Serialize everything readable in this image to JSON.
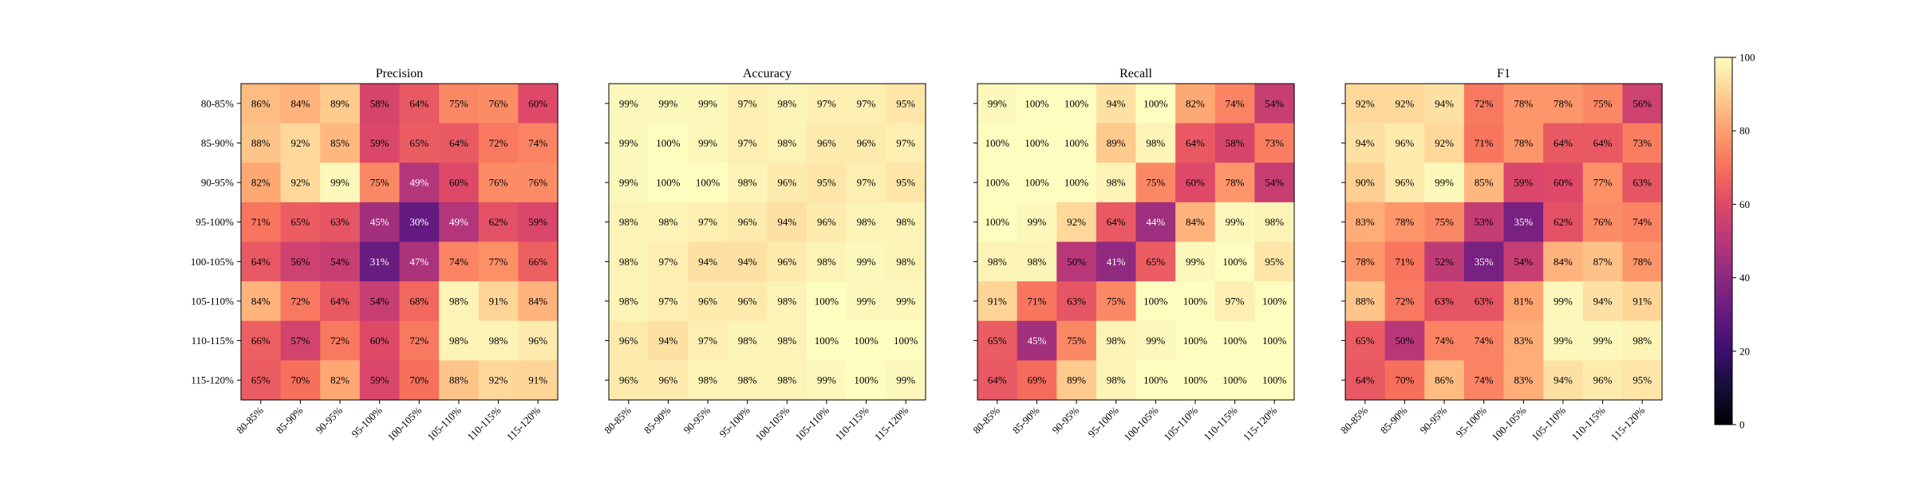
{
  "chart_data": {
    "type": "heatmap",
    "colormap": "magma",
    "value_range": [
      0,
      100
    ],
    "categories": [
      "80-85%",
      "85-90%",
      "90-95%",
      "95-100%",
      "100-105%",
      "105-110%",
      "110-115%",
      "115-120%"
    ],
    "colorbar_ticks": [
      "0",
      "20",
      "40",
      "60",
      "80",
      "100"
    ],
    "panels": [
      {
        "title": "Precision",
        "values": [
          [
            86,
            84,
            89,
            58,
            64,
            75,
            76,
            60
          ],
          [
            88,
            92,
            85,
            59,
            65,
            64,
            72,
            74
          ],
          [
            82,
            92,
            99,
            75,
            49,
            60,
            76,
            76
          ],
          [
            71,
            65,
            63,
            45,
            30,
            49,
            62,
            59
          ],
          [
            64,
            56,
            54,
            31,
            47,
            74,
            77,
            66
          ],
          [
            84,
            72,
            64,
            54,
            68,
            98,
            91,
            84
          ],
          [
            66,
            57,
            72,
            60,
            72,
            98,
            98,
            96
          ],
          [
            65,
            70,
            82,
            59,
            70,
            88,
            92,
            91
          ]
        ]
      },
      {
        "title": "Accuracy",
        "values": [
          [
            99,
            99,
            99,
            97,
            98,
            97,
            97,
            95
          ],
          [
            99,
            100,
            99,
            97,
            98,
            96,
            96,
            97
          ],
          [
            99,
            100,
            100,
            98,
            96,
            95,
            97,
            95
          ],
          [
            98,
            98,
            97,
            96,
            94,
            96,
            98,
            98
          ],
          [
            98,
            97,
            94,
            94,
            96,
            98,
            99,
            98
          ],
          [
            98,
            97,
            96,
            96,
            98,
            100,
            99,
            99
          ],
          [
            96,
            94,
            97,
            98,
            98,
            100,
            100,
            100
          ],
          [
            96,
            96,
            98,
            98,
            98,
            99,
            100,
            99
          ]
        ]
      },
      {
        "title": "Recall",
        "values": [
          [
            99,
            100,
            100,
            94,
            100,
            82,
            74,
            54
          ],
          [
            100,
            100,
            100,
            89,
            98,
            64,
            58,
            73
          ],
          [
            100,
            100,
            100,
            98,
            75,
            60,
            78,
            54
          ],
          [
            100,
            99,
            92,
            64,
            44,
            84,
            99,
            98
          ],
          [
            98,
            98,
            50,
            41,
            65,
            99,
            100,
            95
          ],
          [
            91,
            71,
            63,
            75,
            100,
            100,
            97,
            100
          ],
          [
            65,
            45,
            75,
            98,
            99,
            100,
            100,
            100
          ],
          [
            64,
            69,
            89,
            98,
            100,
            100,
            100,
            100
          ]
        ]
      },
      {
        "title": "F1",
        "values": [
          [
            92,
            92,
            94,
            72,
            78,
            78,
            75,
            56
          ],
          [
            94,
            96,
            92,
            71,
            78,
            64,
            64,
            73
          ],
          [
            90,
            96,
            99,
            85,
            59,
            60,
            77,
            63
          ],
          [
            83,
            78,
            75,
            53,
            35,
            62,
            76,
            74
          ],
          [
            78,
            71,
            52,
            35,
            54,
            84,
            87,
            78
          ],
          [
            88,
            72,
            63,
            63,
            81,
            99,
            94,
            91
          ],
          [
            65,
            50,
            74,
            74,
            83,
            99,
            99,
            98
          ],
          [
            64,
            70,
            86,
            74,
            83,
            94,
            96,
            95
          ]
        ]
      }
    ]
  }
}
